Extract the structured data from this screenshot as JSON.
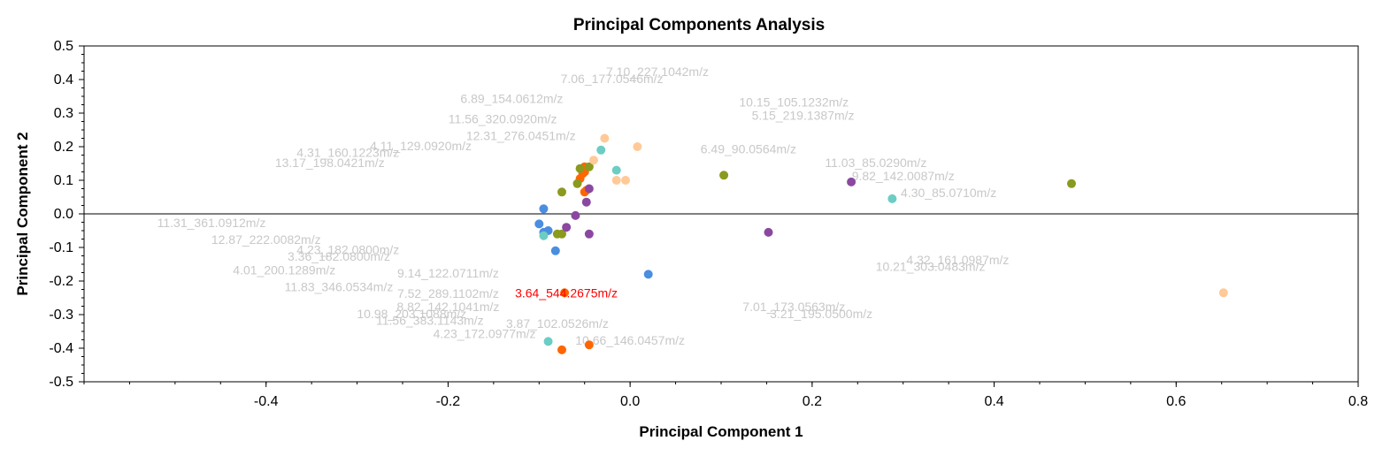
{
  "chart_data": {
    "type": "scatter",
    "title": "Principal Components Analysis",
    "xlabel": "Principal Component 1",
    "ylabel": "Principal Component 2",
    "xlim": [
      -0.6,
      0.8
    ],
    "ylim": [
      -0.5,
      0.5
    ],
    "x_ticks": [
      "-0.4",
      "-0.2",
      "0.0",
      "0.2",
      "0.4",
      "0.6",
      "0.8"
    ],
    "y_ticks": [
      "0.5",
      "0.4",
      "0.3",
      "0.2",
      "0.1",
      "0.0",
      "-0.1",
      "-0.2",
      "-0.3",
      "-0.4",
      "-0.5"
    ],
    "grid": false,
    "zero_line": true,
    "highlighted_label": {
      "text": "3.64_544.2675m/z",
      "x": -0.072,
      "y": -0.235
    },
    "feature_labels": [
      {
        "text": "10.66_146.0457m/z",
        "x": 0.0,
        "y": -0.39
      },
      {
        "text": "11.56_383.1143m/z",
        "x": -0.22,
        "y": -0.33
      },
      {
        "text": "4.01_200.1289m/z",
        "x": -0.38,
        "y": -0.18
      },
      {
        "text": "11.83_346.0534m/z",
        "x": -0.32,
        "y": -0.23
      },
      {
        "text": "12.87_222.0082m/z",
        "x": -0.4,
        "y": -0.09
      },
      {
        "text": "7.06_177.0546m/z",
        "x": -0.02,
        "y": 0.39
      },
      {
        "text": "7.10_227.1042m/z",
        "x": 0.03,
        "y": 0.41
      },
      {
        "text": "6.89_154.0612m/z",
        "x": -0.13,
        "y": 0.33
      },
      {
        "text": "11.56_320.0920m/z",
        "x": -0.14,
        "y": 0.27
      },
      {
        "text": "4.31_160.1223m/z",
        "x": -0.31,
        "y": 0.17
      },
      {
        "text": "13.17_198.0421m/z",
        "x": -0.33,
        "y": 0.14
      },
      {
        "text": "4.11_129.0920m/z",
        "x": -0.23,
        "y": 0.19
      },
      {
        "text": "11.03_85.0290m/z",
        "x": 0.27,
        "y": 0.14
      },
      {
        "text": "5.15_219.1387m/z",
        "x": 0.19,
        "y": 0.28
      },
      {
        "text": "10.15_105.1232m/z",
        "x": 0.18,
        "y": 0.32
      },
      {
        "text": "7.01_173.0563m/z",
        "x": 0.18,
        "y": -0.29
      },
      {
        "text": "3.21_195.0500m/z",
        "x": 0.21,
        "y": -0.31
      },
      {
        "text": "4.23_172.0977m/z",
        "x": -0.16,
        "y": -0.37
      },
      {
        "text": "3.87_102.0526m/z",
        "x": -0.08,
        "y": -0.34
      },
      {
        "text": "8.82_142.1041m/z",
        "x": -0.2,
        "y": -0.29
      },
      {
        "text": "10.98_203.1088m/z",
        "x": -0.24,
        "y": -0.31
      },
      {
        "text": "4.23_182.0800m/z",
        "x": -0.31,
        "y": -0.12
      },
      {
        "text": "3.36_182.0800m/z",
        "x": -0.32,
        "y": -0.14
      },
      {
        "text": "4.30_85.0710m/z",
        "x": 0.35,
        "y": 0.05
      },
      {
        "text": "9.82_142.0087m/z",
        "x": 0.3,
        "y": 0.1
      },
      {
        "text": "4.32_161.0987m/z",
        "x": 0.36,
        "y": -0.15
      },
      {
        "text": "10.21_303.0483m/z",
        "x": 0.33,
        "y": -0.17
      },
      {
        "text": "11.31_361.0912m/z",
        "x": -0.46,
        "y": -0.04
      },
      {
        "text": "6.49_90.0564m/z",
        "x": 0.13,
        "y": 0.18
      },
      {
        "text": "7.52_289.1102m/z",
        "x": -0.2,
        "y": -0.25
      },
      {
        "text": "12.31_276.0451m/z",
        "x": -0.12,
        "y": 0.22
      },
      {
        "text": "9.14_122.0711m/z",
        "x": -0.2,
        "y": -0.19
      }
    ],
    "series": [
      {
        "color": "#ff6600",
        "points": [
          [
            -0.072,
            -0.235
          ],
          [
            -0.075,
            -0.405
          ],
          [
            -0.045,
            -0.39
          ],
          [
            -0.052,
            0.12
          ],
          [
            -0.05,
            0.14
          ],
          [
            -0.05,
            0.125
          ],
          [
            -0.055,
            0.105
          ],
          [
            -0.048,
            0.07
          ],
          [
            -0.05,
            0.065
          ]
        ]
      },
      {
        "color": "#4a8ee0",
        "points": [
          [
            -0.095,
            0.015
          ],
          [
            -0.1,
            -0.03
          ],
          [
            -0.09,
            -0.05
          ],
          [
            -0.095,
            -0.055
          ],
          [
            -0.082,
            -0.11
          ],
          [
            0.02,
            -0.18
          ]
        ]
      },
      {
        "color": "#6ccdc4",
        "points": [
          [
            -0.095,
            -0.065
          ],
          [
            -0.09,
            -0.38
          ],
          [
            -0.032,
            0.19
          ],
          [
            -0.015,
            0.13
          ],
          [
            0.288,
            0.045
          ]
        ]
      },
      {
        "color": "#8a9a1e",
        "points": [
          [
            -0.075,
            0.065
          ],
          [
            -0.058,
            0.09
          ],
          [
            -0.075,
            -0.06
          ],
          [
            -0.08,
            -0.06
          ],
          [
            -0.055,
            0.135
          ],
          [
            -0.045,
            0.14
          ],
          [
            0.103,
            0.115
          ],
          [
            0.485,
            0.09
          ]
        ]
      },
      {
        "color": "#8b48a0",
        "points": [
          [
            -0.045,
            0.075
          ],
          [
            -0.048,
            0.035
          ],
          [
            -0.06,
            -0.005
          ],
          [
            -0.07,
            -0.04
          ],
          [
            -0.045,
            -0.06
          ],
          [
            0.152,
            -0.055
          ],
          [
            0.243,
            0.095
          ]
        ]
      },
      {
        "color": "#ffc998",
        "points": [
          [
            -0.028,
            0.225
          ],
          [
            0.008,
            0.2
          ],
          [
            -0.015,
            0.1
          ],
          [
            -0.005,
            0.1
          ],
          [
            -0.04,
            0.16
          ],
          [
            0.652,
            -0.235
          ]
        ]
      }
    ]
  }
}
